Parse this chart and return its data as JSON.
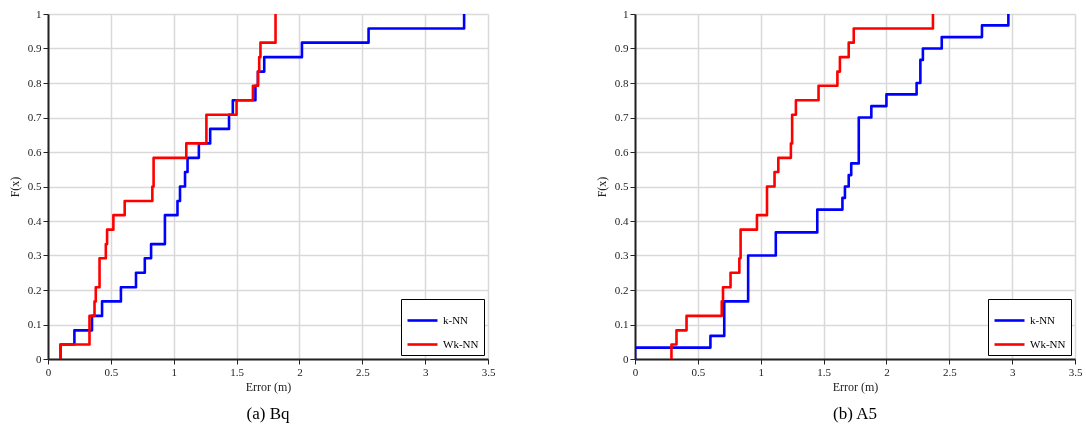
{
  "chart_data": [
    {
      "type": "step",
      "annotations": [
        "(a) Bq"
      ],
      "xlabel": "Error (m)",
      "ylabel": "F(x)",
      "xlim": [
        0,
        3.5
      ],
      "xticks": [
        0,
        0.5,
        1,
        1.5,
        2,
        2.5,
        3,
        3.5
      ],
      "ylim": [
        0,
        1
      ],
      "yticks": [
        0,
        0.1,
        0.2,
        0.3,
        0.4,
        0.5,
        0.6,
        0.7,
        0.8,
        0.9,
        1
      ],
      "grid": true,
      "legend": "bottom right",
      "line_style": "solid",
      "series": [
        {
          "name": "k-NN",
          "color": "#0000ff",
          "x": [
            0.1,
            0.1,
            0.21,
            0.35,
            0.43,
            0.58,
            0.7,
            0.77,
            0.82,
            0.93,
            1.03,
            1.05,
            1.09,
            1.11,
            1.2,
            1.29,
            1.44,
            1.47,
            1.65,
            1.67,
            1.72,
            2.02,
            2.55,
            3.31
          ],
          "values": [
            0,
            0.042,
            0.083,
            0.125,
            0.167,
            0.208,
            0.25,
            0.292,
            0.333,
            0.417,
            0.458,
            0.5,
            0.542,
            0.583,
            0.625,
            0.667,
            0.708,
            0.75,
            0.792,
            0.833,
            0.875,
            0.917,
            0.958,
            1
          ]
        },
        {
          "name": "Wk-NN",
          "color": "#ff0000",
          "x": [
            0.1,
            0.1,
            0.33,
            0.37,
            0.38,
            0.41,
            0.46,
            0.47,
            0.52,
            0.61,
            0.83,
            0.84,
            1.1,
            1.26,
            1.5,
            1.63,
            1.67,
            1.68,
            1.69,
            1.81
          ],
          "values": [
            0,
            0.042,
            0.125,
            0.167,
            0.208,
            0.292,
            0.333,
            0.375,
            0.417,
            0.458,
            0.5,
            0.583,
            0.625,
            0.708,
            0.75,
            0.792,
            0.833,
            0.875,
            0.917,
            1
          ]
        }
      ]
    },
    {
      "type": "step",
      "annotations": [
        "(b) A5"
      ],
      "xlabel": "Error (m)",
      "ylabel": "F(x)",
      "xlim": [
        0,
        3.5
      ],
      "xticks": [
        0,
        0.5,
        1,
        1.5,
        2,
        2.5,
        3,
        3.5
      ],
      "ylim": [
        0,
        1
      ],
      "yticks": [
        0,
        0.1,
        0.2,
        0.3,
        0.4,
        0.5,
        0.6,
        0.7,
        0.8,
        0.9,
        1
      ],
      "grid": true,
      "legend": "bottom right",
      "line_style": "solid",
      "series": [
        {
          "name": "k-NN",
          "color": "#0000ff",
          "x": [
            0,
            0,
            0.6,
            0.71,
            0.9,
            1.12,
            1.45,
            1.65,
            1.67,
            1.7,
            1.72,
            1.78,
            1.88,
            2.0,
            2.24,
            2.27,
            2.29,
            2.44,
            2.76,
            2.97
          ],
          "values": [
            0,
            0.033,
            0.067,
            0.167,
            0.3,
            0.367,
            0.433,
            0.467,
            0.5,
            0.533,
            0.567,
            0.7,
            0.733,
            0.767,
            0.8,
            0.867,
            0.9,
            0.933,
            0.967,
            1
          ]
        },
        {
          "name": "Wk-NN",
          "color": "#ff0000",
          "x": [
            0.29,
            0.29,
            0.33,
            0.41,
            0.69,
            0.7,
            0.76,
            0.83,
            0.84,
            0.97,
            1.05,
            1.11,
            1.14,
            1.24,
            1.25,
            1.28,
            1.46,
            1.61,
            1.63,
            1.7,
            1.74,
            2.37
          ],
          "values": [
            0,
            0.042,
            0.083,
            0.125,
            0.167,
            0.208,
            0.25,
            0.292,
            0.375,
            0.417,
            0.5,
            0.542,
            0.583,
            0.625,
            0.708,
            0.75,
            0.792,
            0.833,
            0.875,
            0.917,
            0.958,
            1
          ]
        }
      ]
    }
  ]
}
